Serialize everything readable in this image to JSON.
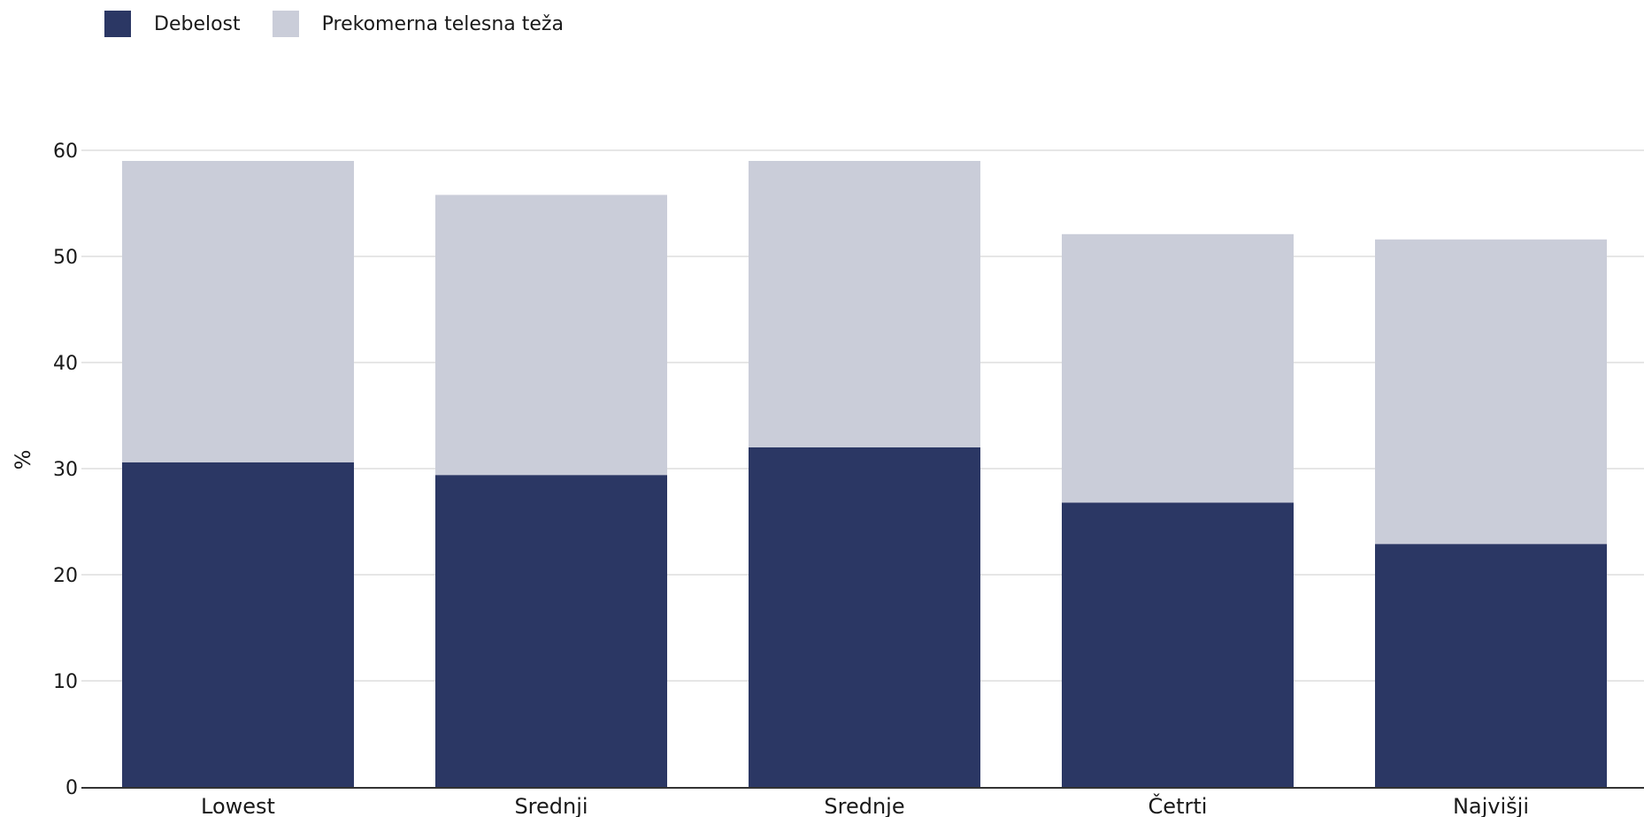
{
  "chart_data": {
    "type": "bar",
    "stacked": true,
    "categories": [
      "Lowest",
      "Srednji",
      "Srednje",
      "Četrti",
      "Najvišji"
    ],
    "series": [
      {
        "name": "Debelost",
        "color": "#2b3764",
        "values": [
          30.6,
          29.4,
          32.0,
          26.8,
          22.9
        ]
      },
      {
        "name": "Prekomerna telesna teža",
        "color": "#cacdd9",
        "values": [
          28.4,
          26.4,
          27.0,
          25.3,
          28.7
        ]
      }
    ],
    "ylabel": "%",
    "ylim": [
      0,
      60
    ],
    "yticks": [
      0,
      10,
      20,
      30,
      40,
      50,
      60
    ],
    "grid": true,
    "legend_position": "top-left"
  }
}
